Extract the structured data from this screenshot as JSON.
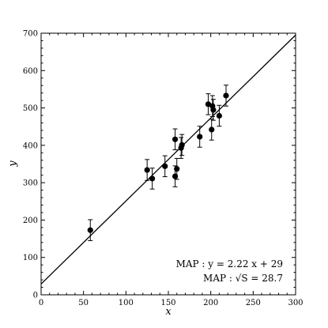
{
  "chart_data": {
    "type": "scatter",
    "xlabel": "x",
    "ylabel": "y",
    "xlim": [
      0,
      300
    ],
    "ylim": [
      0,
      700
    ],
    "x_ticks": [
      0,
      50,
      100,
      150,
      200,
      250,
      300
    ],
    "y_ticks": [
      0,
      100,
      200,
      300,
      400,
      500,
      600,
      700
    ],
    "grid": false,
    "points": [
      {
        "x": 58,
        "y": 173,
        "err": 28
      },
      {
        "x": 125,
        "y": 334,
        "err": 28
      },
      {
        "x": 131,
        "y": 311,
        "err": 28
      },
      {
        "x": 146,
        "y": 344,
        "err": 28
      },
      {
        "x": 158,
        "y": 416,
        "err": 28
      },
      {
        "x": 158,
        "y": 317,
        "err": 28
      },
      {
        "x": 160,
        "y": 337,
        "err": 28
      },
      {
        "x": 165,
        "y": 393,
        "err": 28
      },
      {
        "x": 166,
        "y": 401,
        "err": 28
      },
      {
        "x": 187,
        "y": 423,
        "err": 28
      },
      {
        "x": 197,
        "y": 510,
        "err": 28
      },
      {
        "x": 201,
        "y": 442,
        "err": 28
      },
      {
        "x": 202,
        "y": 505,
        "err": 28
      },
      {
        "x": 203,
        "y": 495,
        "err": 28
      },
      {
        "x": 210,
        "y": 479,
        "err": 28
      },
      {
        "x": 218,
        "y": 533,
        "err": 28
      }
    ],
    "fit_line": {
      "slope": 2.22,
      "intercept": 29
    },
    "annotations": [
      "MAP  :  y = 2.22 x + 29",
      "MAP  :  √S = 28.7"
    ]
  }
}
